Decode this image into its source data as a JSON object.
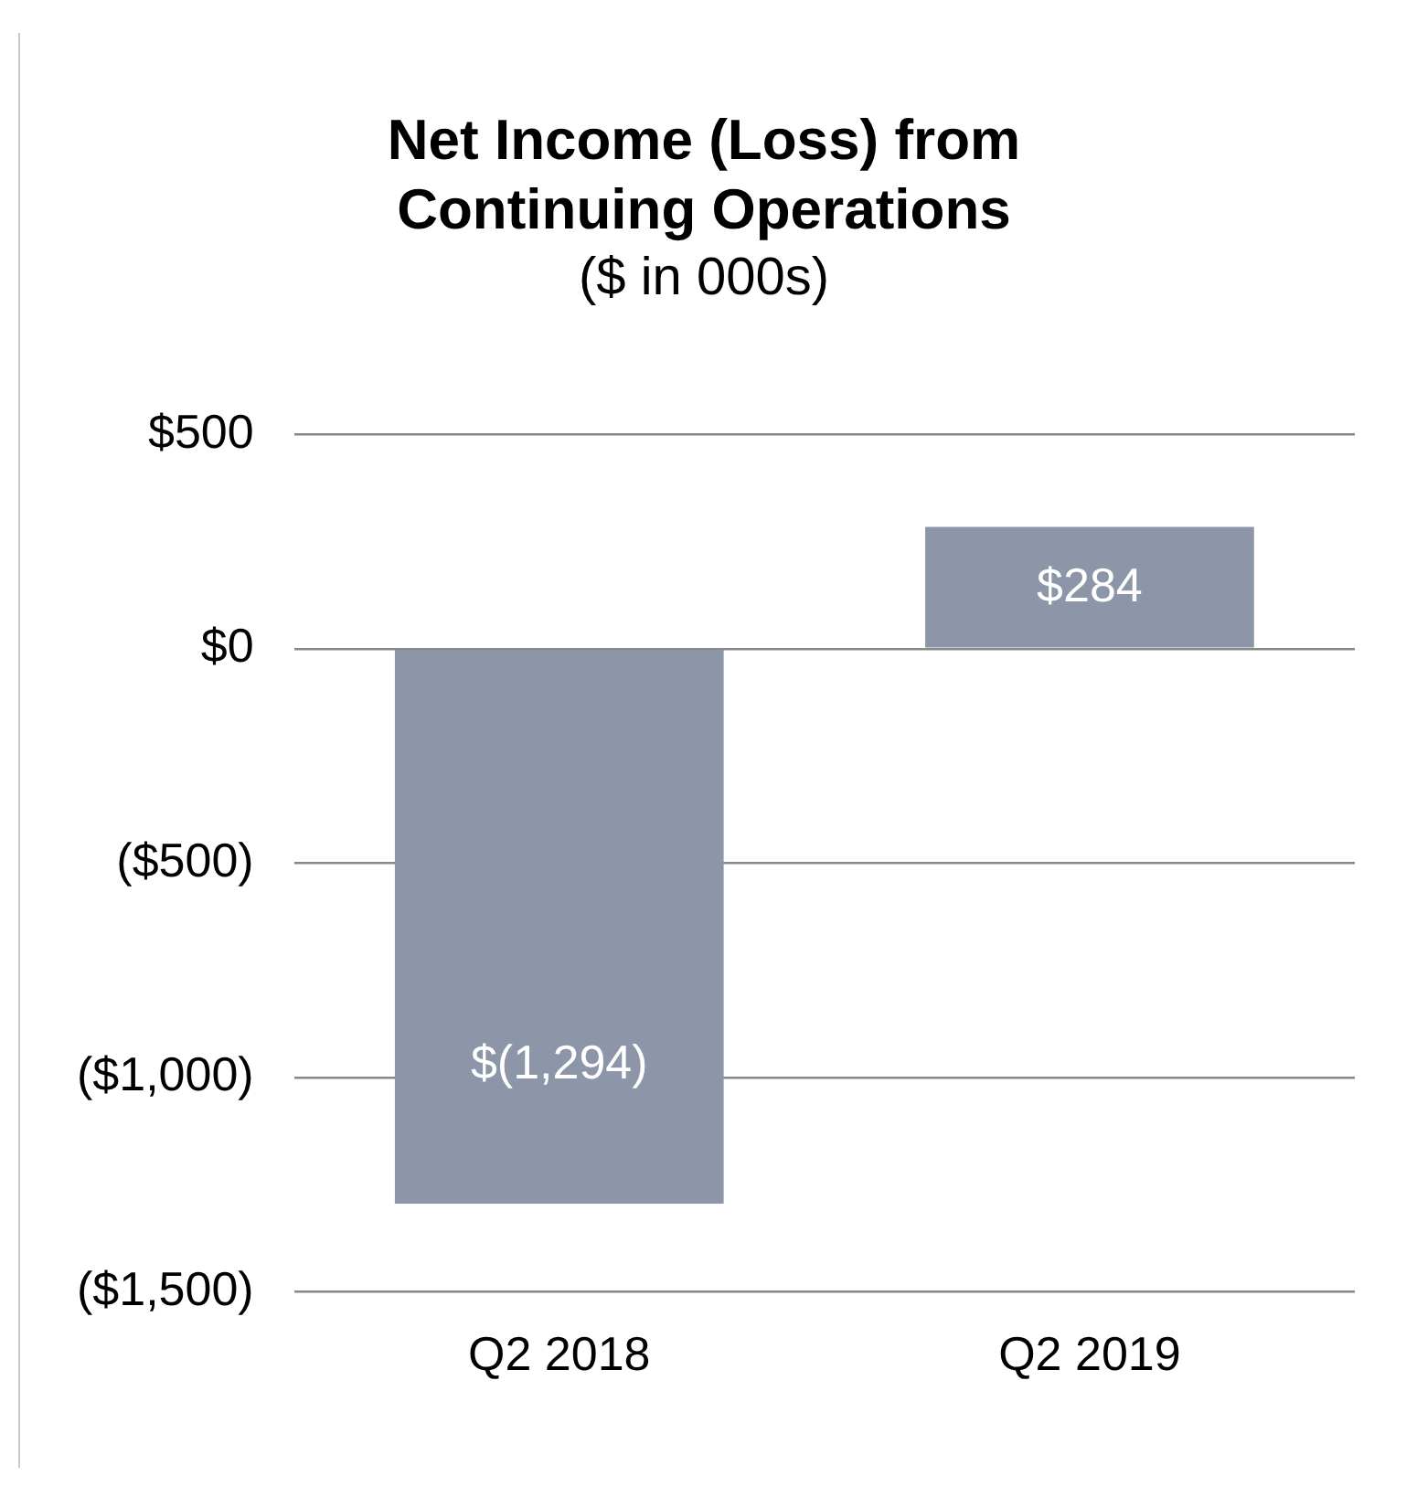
{
  "chart_data": {
    "type": "bar",
    "title": "Net Income (Loss) from Continuing Operations",
    "subtitle": "($ in 000s)",
    "categories": [
      "Q2 2018",
      "Q2 2019"
    ],
    "values": [
      -1294,
      284
    ],
    "color": "#8c96a8",
    "value_labels": [
      "$(1,294)",
      "$284"
    ],
    "ylim": [
      -1500,
      500
    ],
    "yticks": [
      {
        "value": 500,
        "label": "$500"
      },
      {
        "value": 0,
        "label": "$0"
      },
      {
        "value": -500,
        "label": "($500)"
      },
      {
        "value": -1000,
        "label": "($1,000)"
      },
      {
        "value": -1500,
        "label": "($1,500)"
      }
    ],
    "grid": "y",
    "legend": false
  }
}
